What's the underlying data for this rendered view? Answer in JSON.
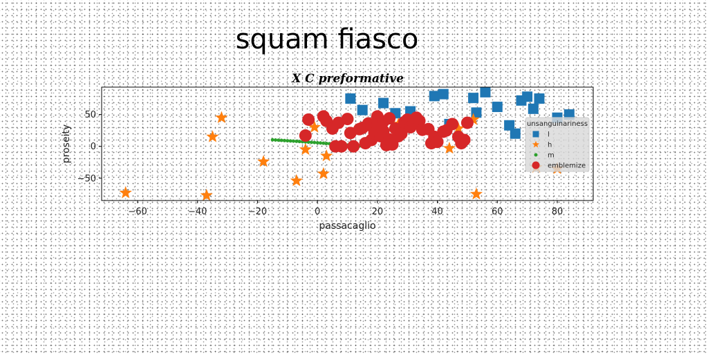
{
  "figure": {
    "title": "squam fiasco"
  },
  "chart_data": {
    "type": "scatter",
    "title": "X C preformative",
    "xlabel": "passacaglio",
    "ylabel": "proseity",
    "xlim": [
      -72,
      92
    ],
    "ylim": [
      -85,
      93
    ],
    "xticks": [
      -60,
      -40,
      -20,
      0,
      20,
      40,
      60,
      80
    ],
    "yticks": [
      -50,
      0,
      50
    ],
    "grid": false,
    "legend": {
      "title": "unsanguinariness",
      "placement": "right"
    },
    "series": [
      {
        "name": "l",
        "marker": "square",
        "color": "#1f77b4",
        "size": 15,
        "x": [
          11,
          15,
          22,
          26,
          31,
          39,
          42,
          44,
          52,
          53,
          56,
          60,
          64,
          66,
          68,
          70,
          72,
          74,
          80,
          84
        ],
        "y": [
          75,
          57,
          68,
          52,
          55,
          79,
          82,
          35,
          76,
          53,
          85,
          62,
          33,
          20,
          72,
          78,
          59,
          75,
          45,
          50
        ]
      },
      {
        "name": "h",
        "marker": "star",
        "color": "#ff7f0e",
        "size": 16,
        "x": [
          -64,
          -37,
          -35,
          -32,
          -18,
          -7,
          -4,
          -1,
          2,
          3,
          27,
          44,
          47,
          52,
          53,
          73,
          80
        ],
        "y": [
          -73,
          -77,
          15,
          45,
          -24,
          -54,
          -5,
          30,
          -43,
          -15,
          35,
          -3,
          28,
          42,
          -75,
          -33,
          -35
        ]
      },
      {
        "name": "m",
        "marker": "circle",
        "color": "#2ca02c",
        "size": 5,
        "x": [
          -15,
          -14,
          -13,
          -12,
          -11,
          -10,
          -9,
          -8,
          -7,
          -6,
          -5,
          -4,
          -3,
          -2,
          -1,
          0,
          1,
          2,
          3,
          4,
          5,
          6,
          7,
          8,
          9,
          10,
          11,
          12,
          13,
          14
        ],
        "y": [
          10.2,
          10.0,
          9.7,
          9.4,
          9.1,
          8.8,
          8.5,
          8.2,
          7.9,
          7.6,
          7.3,
          7.0,
          6.6,
          6.3,
          6.0,
          5.6,
          5.3,
          4.9,
          4.6,
          4.2,
          3.9,
          3.5,
          3.1,
          2.8,
          2.4,
          2.0,
          1.7,
          1.3,
          0.9,
          0.5
        ]
      },
      {
        "name": "emblemize",
        "marker": "circle",
        "color": "#d62728",
        "size": 18,
        "x": [
          -3,
          -4,
          2,
          3,
          5,
          6,
          7,
          8,
          10,
          11,
          12,
          14,
          15,
          16,
          17,
          18,
          18,
          19,
          20,
          20,
          21,
          22,
          22,
          23,
          24,
          24,
          25,
          26,
          27,
          28,
          29,
          30,
          31,
          32,
          33,
          34,
          35,
          37,
          38,
          39,
          40,
          42,
          43,
          45,
          47,
          48,
          49,
          50
        ],
        "y": [
          42,
          17,
          47,
          40,
          28,
          0,
          37,
          0,
          43,
          21,
          0,
          27,
          29,
          5,
          36,
          32,
          10,
          21,
          47,
          34,
          16,
          39,
          24,
          2,
          11,
          44,
          3,
          28,
          16,
          20,
          38,
          42,
          30,
          35,
          45,
          40,
          26,
          27,
          5,
          15,
          7,
          23,
          25,
          35,
          15,
          5,
          10,
          37
        ]
      }
    ]
  }
}
